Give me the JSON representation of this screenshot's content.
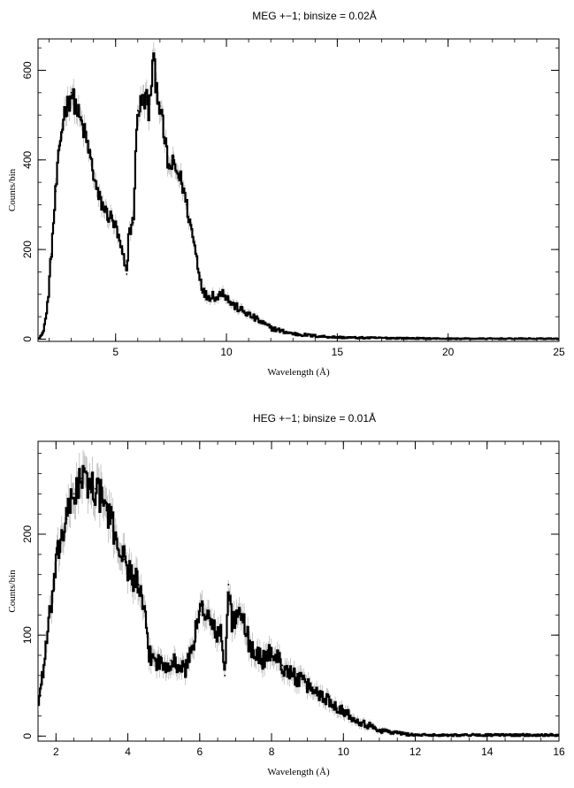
{
  "chart_data": [
    {
      "type": "line",
      "title": "MEG +−1; binsize = 0.02Å",
      "xlabel": "Wavelength (Å)",
      "ylabel": "Counts/bin",
      "xlim": [
        1.5,
        25
      ],
      "ylim": [
        -5,
        670
      ],
      "xticks": [
        5,
        10,
        15,
        20,
        25
      ],
      "yticks": [
        0,
        200,
        400,
        600
      ],
      "grid": false,
      "series": [
        {
          "x": [
            1.5,
            1.7,
            1.9,
            2.0,
            2.1,
            2.3,
            2.5,
            2.7,
            2.9,
            3.0,
            3.2,
            3.4,
            3.6,
            3.8,
            4.0,
            4.2,
            4.4,
            4.6,
            4.8,
            5.0,
            5.2,
            5.4,
            5.5,
            5.6,
            5.8,
            5.9,
            6.0,
            6.2,
            6.4,
            6.5,
            6.6,
            6.7,
            6.8,
            7.0,
            7.2,
            7.4,
            7.6,
            7.8,
            8.0,
            8.2,
            8.4,
            8.6,
            8.8,
            9.0,
            9.2,
            9.4,
            9.6,
            9.8,
            10.0,
            10.2,
            10.5,
            11.0,
            11.5,
            12.0,
            12.5,
            13.0,
            14.0,
            15.0,
            16.0,
            18.0,
            20.0,
            22.0,
            25.0
          ],
          "y": [
            2,
            10,
            60,
            120,
            190,
            330,
            440,
            510,
            530,
            550,
            520,
            490,
            460,
            420,
            370,
            320,
            300,
            280,
            270,
            250,
            210,
            170,
            145,
            240,
            260,
            400,
            510,
            530,
            540,
            500,
            560,
            630,
            580,
            520,
            450,
            380,
            390,
            370,
            350,
            300,
            250,
            200,
            140,
            100,
            95,
            100,
            90,
            110,
            95,
            80,
            70,
            55,
            40,
            25,
            18,
            12,
            7,
            4,
            3,
            2,
            1,
            1,
            1
          ]
        }
      ]
    },
    {
      "type": "line",
      "title": "HEG +−1; binsize = 0.01Å",
      "xlabel": "Wavelength (Å)",
      "ylabel": "Counts/bin",
      "xlim": [
        1.5,
        16
      ],
      "ylim": [
        -5,
        292
      ],
      "xticks": [
        2,
        4,
        6,
        8,
        10,
        12,
        14,
        16
      ],
      "yticks": [
        0,
        100,
        200
      ],
      "grid": false,
      "series": [
        {
          "x": [
            1.5,
            1.7,
            1.9,
            2.1,
            2.3,
            2.5,
            2.7,
            2.9,
            3.1,
            3.3,
            3.5,
            3.7,
            3.9,
            4.1,
            4.3,
            4.5,
            4.6,
            4.8,
            5.0,
            5.2,
            5.4,
            5.6,
            5.8,
            6.0,
            6.1,
            6.2,
            6.4,
            6.6,
            6.7,
            6.8,
            6.9,
            7.0,
            7.2,
            7.4,
            7.6,
            7.8,
            8.0,
            8.3,
            8.6,
            9.0,
            9.4,
            9.8,
            10.2,
            10.6,
            11.0,
            11.5,
            12.0,
            13.0,
            14.0,
            15.0,
            16.0
          ],
          "y": [
            30,
            80,
            140,
            190,
            215,
            240,
            255,
            250,
            245,
            235,
            215,
            195,
            175,
            160,
            150,
            110,
            80,
            75,
            70,
            75,
            70,
            65,
            90,
            120,
            130,
            120,
            105,
            100,
            60,
            150,
            110,
            120,
            115,
            90,
            80,
            75,
            85,
            70,
            60,
            50,
            40,
            30,
            20,
            12,
            6,
            3,
            1,
            1,
            1,
            1,
            1
          ]
        }
      ]
    }
  ]
}
